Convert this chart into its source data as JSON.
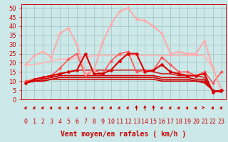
{
  "title": "",
  "xlabel": "Vent moyen/en rafales ( km/h )",
  "background_color": "#cce8e8",
  "grid_color": "#aacccc",
  "xlim": [
    -0.5,
    23.5
  ],
  "ylim": [
    0,
    52
  ],
  "yticks": [
    0,
    5,
    10,
    15,
    20,
    25,
    30,
    35,
    40,
    45,
    50
  ],
  "xticks": [
    0,
    1,
    2,
    3,
    4,
    5,
    6,
    7,
    8,
    9,
    10,
    11,
    12,
    13,
    14,
    15,
    16,
    17,
    18,
    19,
    20,
    21,
    22,
    23
  ],
  "lines": [
    {
      "y": [
        9,
        10,
        10,
        11,
        11,
        11,
        11,
        11,
        11,
        11,
        11,
        11,
        11,
        11,
        11,
        11,
        10,
        10,
        10,
        10,
        10,
        9,
        5,
        4
      ],
      "color": "#cc0000",
      "lw": 1.2,
      "marker": null,
      "zorder": 3
    },
    {
      "y": [
        9,
        10,
        10,
        11,
        12,
        12,
        12,
        12,
        12,
        12,
        12,
        12,
        12,
        12,
        12,
        12,
        11,
        11,
        11,
        11,
        10,
        10,
        5,
        4
      ],
      "color": "#cc0000",
      "lw": 1.2,
      "marker": null,
      "zorder": 3
    },
    {
      "y": [
        9,
        10,
        11,
        12,
        13,
        13,
        13,
        13,
        13,
        13,
        13,
        13,
        13,
        13,
        13,
        13,
        12,
        12,
        12,
        12,
        11,
        11,
        5,
        4
      ],
      "color": "#cc0000",
      "lw": 1.2,
      "marker": null,
      "zorder": 3
    },
    {
      "y": [
        9,
        11,
        12,
        13,
        14,
        15,
        16,
        16,
        16,
        16,
        16,
        16,
        16,
        16,
        16,
        15,
        14,
        14,
        13,
        13,
        13,
        12,
        5,
        4
      ],
      "color": "#cc2222",
      "lw": 1.2,
      "marker": null,
      "zorder": 3
    },
    {
      "y": [
        19,
        19,
        20,
        21,
        22,
        22,
        23,
        23,
        24,
        24,
        24,
        24,
        24,
        24,
        24,
        24,
        24,
        24,
        24,
        24,
        24,
        24,
        17,
        5
      ],
      "color": "#ffbbbb",
      "lw": 1.5,
      "marker": null,
      "zorder": 2
    },
    {
      "y": [
        10,
        11,
        12,
        13,
        17,
        22,
        25,
        13,
        16,
        14,
        21,
        25,
        26,
        15,
        16,
        16,
        23,
        19,
        15,
        15,
        13,
        15,
        9,
        15
      ],
      "color": "#ff5555",
      "lw": 1.2,
      "marker": "D",
      "ms": 2,
      "zorder": 6
    },
    {
      "y": [
        19,
        24,
        26,
        23,
        36,
        39,
        30,
        14,
        16,
        31,
        41,
        48,
        50,
        44,
        43,
        40,
        36,
        25,
        26,
        25,
        25,
        32,
        17,
        5
      ],
      "color": "#ffaaaa",
      "lw": 1.5,
      "marker": "D",
      "ms": 2,
      "zorder": 7
    },
    {
      "y": [
        9,
        11,
        12,
        13,
        14,
        15,
        16,
        25,
        14,
        14,
        16,
        21,
        25,
        25,
        15,
        16,
        19,
        15,
        14,
        13,
        13,
        14,
        4,
        5
      ],
      "color": "#dd0000",
      "lw": 1.5,
      "marker": "P",
      "ms": 3,
      "zorder": 8
    }
  ],
  "wind_dirs": [
    225,
    225,
    225,
    225,
    225,
    225,
    225,
    225,
    225,
    225,
    225,
    225,
    225,
    180,
    180,
    180,
    225,
    225,
    225,
    225,
    225,
    270,
    225,
    225
  ],
  "xlabel_color": "#cc0000",
  "xlabel_fontsize": 7,
  "tick_fontsize": 6,
  "tick_color": "#cc0000",
  "spine_color": "#cc0000"
}
